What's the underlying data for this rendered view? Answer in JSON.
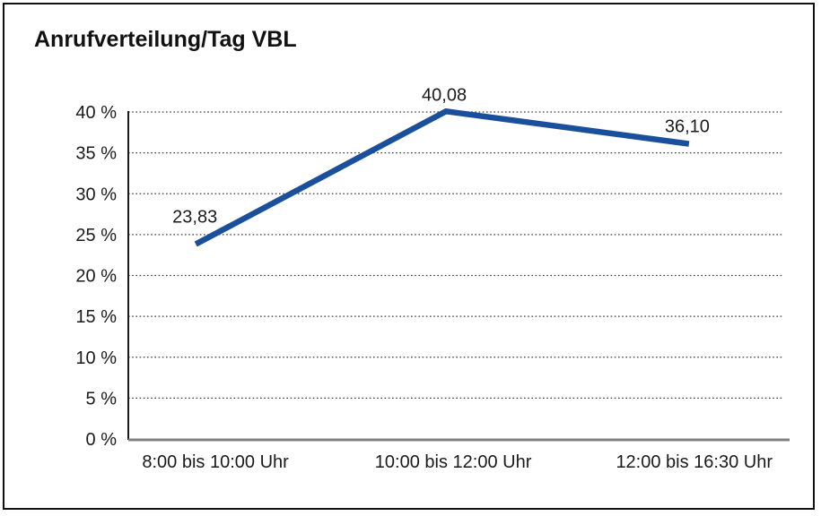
{
  "chart_data": {
    "type": "line",
    "title": "Anrufverteilung/Tag VBL",
    "categories": [
      "8:00 bis 10:00 Uhr",
      "10:00 bis 12:00 Uhr",
      "12:00 bis 16:30 Uhr"
    ],
    "series": [
      {
        "name": "Anrufverteilung",
        "values": [
          23.83,
          40.08,
          36.1
        ],
        "point_labels": [
          "23,83",
          "40,08",
          "36,10"
        ]
      }
    ],
    "xlabel": "",
    "ylabel": "",
    "ylim": [
      0,
      40
    ],
    "ytick_step": 5,
    "ytick_labels": [
      "0 %",
      "5 %",
      "10 %",
      "15 %",
      "20 %",
      "25 %",
      "30 %",
      "35 %",
      "40 %"
    ],
    "grid": "horizontal dotted lines at each 5% step, grid on",
    "legend_position": "none",
    "colors": {
      "line": "#1A4F9B",
      "text": "#1a1a1a",
      "gridline": "#3a3a3a",
      "y_axis": "#1a1a1a",
      "x_axis": "#808080",
      "frame_border": "#111111",
      "background": "#ffffff"
    }
  }
}
